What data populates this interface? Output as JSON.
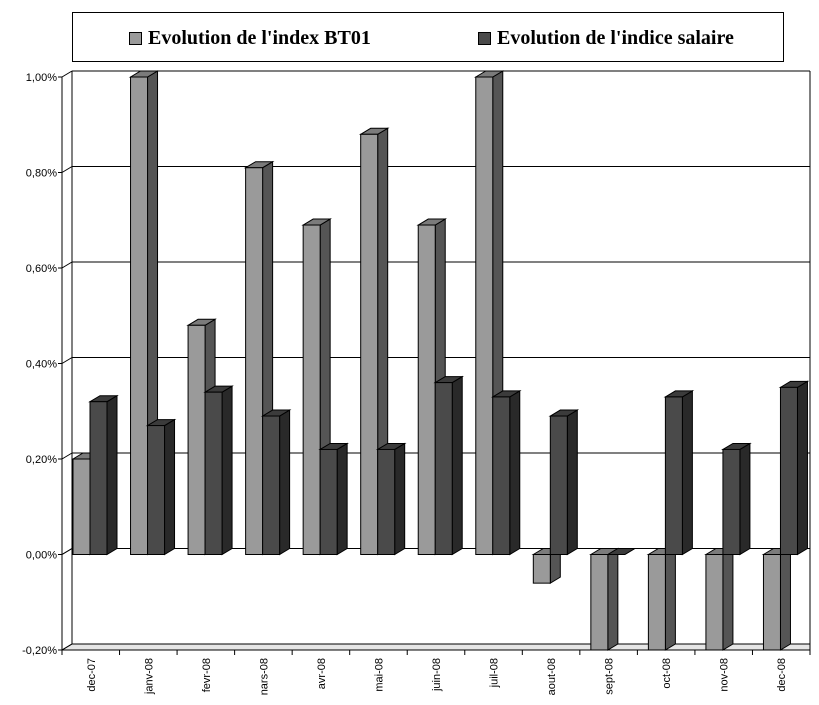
{
  "chart_data": {
    "type": "bar",
    "categories": [
      "dec-07",
      "janv-08",
      "fevr-08",
      "nars-08",
      "avr-08",
      "mai-08",
      "juin-08",
      "juil-08",
      "aout-08",
      "sept-08",
      "oct-08",
      "nov-08",
      "dec-08"
    ],
    "series": [
      {
        "name": "Evolution de l'index BT01",
        "values": [
          0.2,
          1.0,
          0.48,
          0.81,
          0.69,
          0.88,
          0.69,
          1.0,
          -0.06,
          -0.2,
          -0.2,
          -0.2,
          -0.2
        ],
        "color": "#9a9a9a"
      },
      {
        "name": "Evolution de l'indice salaire",
        "values": [
          0.32,
          0.27,
          0.34,
          0.29,
          0.22,
          0.22,
          0.36,
          0.33,
          0.29,
          0.0,
          0.33,
          0.22,
          0.35
        ],
        "color": "#4a4a4a"
      }
    ],
    "ylim": [
      -0.2,
      1.0
    ],
    "yticks": [
      -0.2,
      0.0,
      0.2,
      0.4,
      0.6,
      0.8,
      1.0
    ],
    "ytick_labels": [
      "-0,20%",
      "0,00%",
      "0,20%",
      "0,40%",
      "0,60%",
      "0,80%",
      "1,00%"
    ],
    "grid": true,
    "legend": "top",
    "title": "",
    "xlabel": "",
    "ylabel": ""
  }
}
